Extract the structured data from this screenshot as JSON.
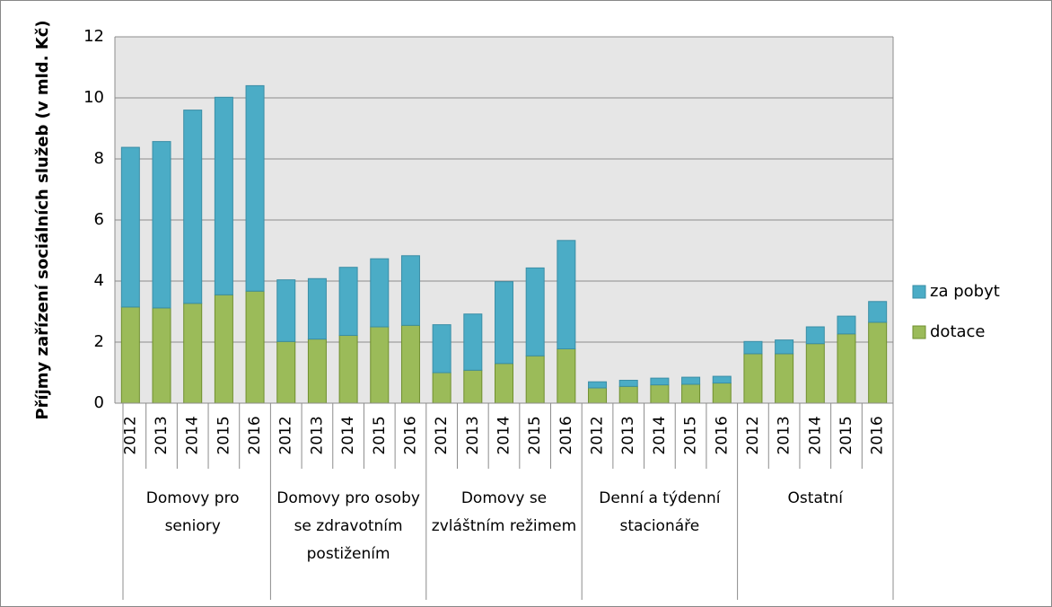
{
  "chart_data": {
    "type": "bar",
    "stacked": true,
    "y_label": "Příjmy zařízení sociálních služeb (v mld. Kč)",
    "groups": [
      {
        "name": "Domovy pro seniory",
        "categories": [
          "2012",
          "2013",
          "2014",
          "2015",
          "2016"
        ]
      },
      {
        "name": "Domovy pro osoby se zdravotním postižením",
        "categories": [
          "2012",
          "2013",
          "2014",
          "2015",
          "2016"
        ]
      },
      {
        "name": "Domovy se zvláštním režimem",
        "categories": [
          "2012",
          "2013",
          "2014",
          "2015",
          "2016"
        ]
      },
      {
        "name": "Denní a týdenní stacionáře",
        "categories": [
          "2012",
          "2013",
          "2014",
          "2015",
          "2016"
        ]
      },
      {
        "name": "Ostatní",
        "categories": [
          "2012",
          "2013",
          "2014",
          "2015",
          "2016"
        ]
      }
    ],
    "series": [
      {
        "name": "dotace",
        "color": "#9bbb59",
        "values": [
          3.15,
          3.12,
          3.27,
          3.55,
          3.67,
          2.02,
          2.1,
          2.22,
          2.5,
          2.55,
          1.0,
          1.08,
          1.3,
          1.55,
          1.78,
          0.5,
          0.55,
          0.6,
          0.62,
          0.66,
          1.62,
          1.62,
          1.95,
          2.27,
          2.65
        ]
      },
      {
        "name": "za pobyt",
        "color": "#4bacc6",
        "values": [
          5.23,
          5.45,
          6.33,
          6.47,
          6.73,
          2.02,
          1.98,
          2.23,
          2.23,
          2.28,
          1.57,
          1.84,
          2.68,
          2.88,
          3.55,
          0.2,
          0.2,
          0.22,
          0.23,
          0.22,
          0.4,
          0.45,
          0.55,
          0.58,
          0.68
        ]
      }
    ],
    "ylim": [
      0,
      12
    ],
    "yticks": [
      0,
      2,
      4,
      6,
      8,
      10,
      12
    ],
    "grid": true,
    "legend": "right"
  }
}
